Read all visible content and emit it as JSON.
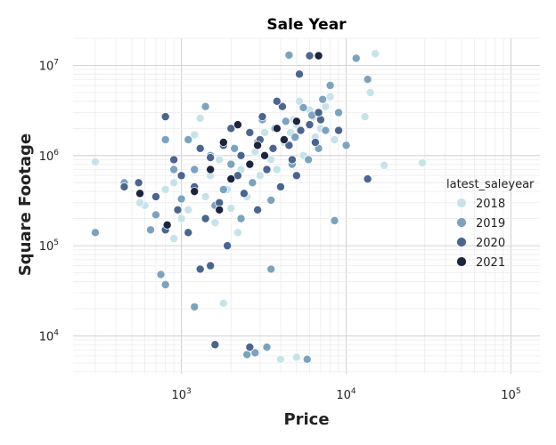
{
  "chart_data": {
    "type": "scatter",
    "title": "Sale Year",
    "xlabel": "Price",
    "ylabel": "Square Footage",
    "x_scale": "log10",
    "y_scale": "log10",
    "xlim": [
      220,
      150000
    ],
    "ylim": [
      3800,
      20000000
    ],
    "x_ticks": [
      {
        "value": 1000,
        "base": "10",
        "exp": "3"
      },
      {
        "value": 10000,
        "base": "10",
        "exp": "4"
      },
      {
        "value": 100000,
        "base": "10",
        "exp": "5"
      }
    ],
    "y_ticks": [
      {
        "value": 10000,
        "base": "10",
        "exp": "4"
      },
      {
        "value": 100000,
        "base": "10",
        "exp": "5"
      },
      {
        "value": 1000000,
        "base": "10",
        "exp": "6"
      },
      {
        "value": 10000000,
        "base": "10",
        "exp": "7"
      }
    ],
    "grid": true,
    "legend": {
      "title": "latest_saleyear",
      "position": "right",
      "entries": [
        {
          "label": "2018",
          "color": "#c7e3ea"
        },
        {
          "label": "2019",
          "color": "#7ba3bf"
        },
        {
          "label": "2020",
          "color": "#4a6590"
        },
        {
          "label": "2021",
          "color": "#1c2540"
        }
      ]
    },
    "series": [
      {
        "year": "2018",
        "color": "#c7e3ea",
        "points": [
          [
            300,
            850000
          ],
          [
            15000,
            13500000
          ],
          [
            14000,
            5000000
          ],
          [
            13000,
            2700000
          ],
          [
            17000,
            780000
          ],
          [
            29000,
            830000
          ],
          [
            8500,
            1500000
          ],
          [
            1800,
            23000
          ],
          [
            4000,
            5500
          ],
          [
            5000,
            5800
          ],
          [
            1200,
            1700000
          ],
          [
            600,
            280000
          ],
          [
            560,
            300000
          ],
          [
            1300,
            2600000
          ],
          [
            900,
            120000
          ],
          [
            1600,
            180000
          ],
          [
            2200,
            140000
          ],
          [
            3000,
            600000
          ],
          [
            3500,
            900000
          ],
          [
            4200,
            1400000
          ],
          [
            5000,
            2200000
          ],
          [
            6000,
            3200000
          ],
          [
            7000,
            2000000
          ],
          [
            8000,
            4500000
          ],
          [
            2500,
            350000
          ],
          [
            1500,
            600000
          ],
          [
            900,
            500000
          ],
          [
            1100,
            250000
          ],
          [
            1900,
            420000
          ],
          [
            2800,
            1100000
          ],
          [
            3800,
            700000
          ],
          [
            4600,
            1800000
          ],
          [
            5500,
            1000000
          ],
          [
            6500,
            1600000
          ],
          [
            1700,
            900000
          ],
          [
            2300,
            700000
          ],
          [
            1400,
            350000
          ],
          [
            1000,
            200000
          ],
          [
            3200,
            1800000
          ],
          [
            4800,
            2500000
          ],
          [
            6300,
            2700000
          ],
          [
            7500,
            3500000
          ],
          [
            5200,
            4000000
          ],
          [
            800,
            420000
          ],
          [
            2000,
            260000
          ]
        ]
      },
      {
        "year": "2019",
        "color": "#7ba3bf",
        "points": [
          [
            11500,
            12000000
          ],
          [
            8000,
            6000000
          ],
          [
            9000,
            3000000
          ],
          [
            10000,
            1300000
          ],
          [
            8500,
            190000
          ],
          [
            13500,
            7000000
          ],
          [
            4500,
            13000000
          ],
          [
            300,
            140000
          ],
          [
            1200,
            21000
          ],
          [
            3500,
            55000
          ],
          [
            2800,
            6500
          ],
          [
            3300,
            7500
          ],
          [
            2500,
            6200
          ],
          [
            5800,
            5500
          ],
          [
            800,
            37000
          ],
          [
            750,
            48000
          ],
          [
            450,
            500000
          ],
          [
            700,
            220000
          ],
          [
            650,
            150000
          ],
          [
            800,
            1500000
          ],
          [
            1400,
            3500000
          ],
          [
            1800,
            420000
          ],
          [
            2300,
            200000
          ],
          [
            2900,
            1400000
          ],
          [
            3700,
            2000000
          ],
          [
            4300,
            2400000
          ],
          [
            5500,
            3400000
          ],
          [
            7500,
            1900000
          ],
          [
            6800,
            1200000
          ],
          [
            5900,
            900000
          ],
          [
            1000,
            330000
          ],
          [
            1200,
            700000
          ],
          [
            2000,
            800000
          ],
          [
            2700,
            500000
          ],
          [
            1600,
            280000
          ],
          [
            3500,
            320000
          ],
          [
            4700,
            800000
          ],
          [
            6200,
            2800000
          ],
          [
            7200,
            4200000
          ],
          [
            1100,
            1500000
          ],
          [
            900,
            700000
          ],
          [
            1500,
            1000000
          ],
          [
            3100,
            2500000
          ],
          [
            4900,
            1600000
          ],
          [
            2100,
            1200000
          ]
        ]
      },
      {
        "year": "2020",
        "color": "#4a6590",
        "points": [
          [
            5200,
            8000000
          ],
          [
            6000,
            12800000
          ],
          [
            9000,
            1900000
          ],
          [
            1600,
            8000
          ],
          [
            2600,
            7500
          ],
          [
            800,
            2700000
          ],
          [
            1300,
            55000
          ],
          [
            1500,
            60000
          ],
          [
            1900,
            100000
          ],
          [
            3000,
            1500000
          ],
          [
            450,
            450000
          ],
          [
            550,
            500000
          ],
          [
            700,
            350000
          ],
          [
            950,
            250000
          ],
          [
            1200,
            450000
          ],
          [
            1500,
            950000
          ],
          [
            1800,
            1300000
          ],
          [
            2200,
            600000
          ],
          [
            2600,
            1800000
          ],
          [
            3100,
            2700000
          ],
          [
            3600,
            1200000
          ],
          [
            4100,
            3500000
          ],
          [
            4700,
            900000
          ],
          [
            5300,
            1900000
          ],
          [
            6000,
            2200000
          ],
          [
            800,
            150000
          ],
          [
            1100,
            140000
          ],
          [
            1400,
            200000
          ],
          [
            1700,
            300000
          ],
          [
            2400,
            380000
          ],
          [
            3300,
            700000
          ],
          [
            4000,
            450000
          ],
          [
            5000,
            600000
          ],
          [
            6500,
            1400000
          ],
          [
            2900,
            250000
          ],
          [
            1000,
            600000
          ],
          [
            2000,
            2000000
          ],
          [
            3800,
            4000000
          ],
          [
            7000,
            2500000
          ],
          [
            13500,
            550000
          ],
          [
            1300,
            1200000
          ],
          [
            2300,
            1000000
          ],
          [
            4500,
            1300000
          ],
          [
            900,
            900000
          ],
          [
            6800,
            3000000
          ]
        ]
      },
      {
        "year": "2021",
        "color": "#1c2540",
        "points": [
          [
            6800,
            12800000
          ],
          [
            820,
            170000
          ],
          [
            560,
            380000
          ],
          [
            1800,
            1400000
          ],
          [
            2200,
            2200000
          ],
          [
            2600,
            800000
          ],
          [
            3200,
            1000000
          ],
          [
            4200,
            1500000
          ],
          [
            1500,
            700000
          ],
          [
            3800,
            2000000
          ],
          [
            1200,
            400000
          ],
          [
            2000,
            550000
          ],
          [
            2900,
            1300000
          ],
          [
            5000,
            2400000
          ],
          [
            1700,
            250000
          ]
        ]
      }
    ]
  }
}
